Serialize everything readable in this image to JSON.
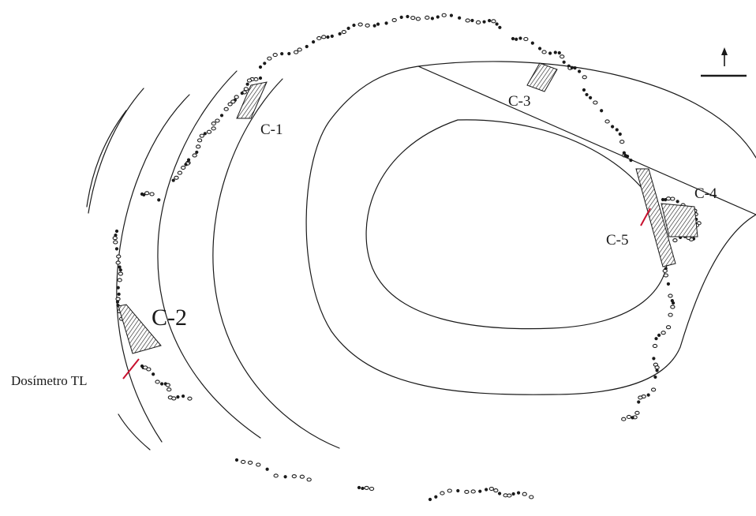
{
  "map": {
    "sectors": [
      {
        "id": "C-1",
        "label": "C-1"
      },
      {
        "id": "C-2",
        "label": "C-2"
      },
      {
        "id": "C-3",
        "label": "C-3"
      },
      {
        "id": "C-4",
        "label": "C-4"
      },
      {
        "id": "C-5",
        "label": "C-5"
      }
    ],
    "dosimeter_label": "Dosímetro TL",
    "north_arrow": {
      "icon": "north-arrow-icon"
    },
    "colors": {
      "line": "#1a1a1a",
      "pointer": "#c8102e",
      "background": "#ffffff"
    }
  }
}
